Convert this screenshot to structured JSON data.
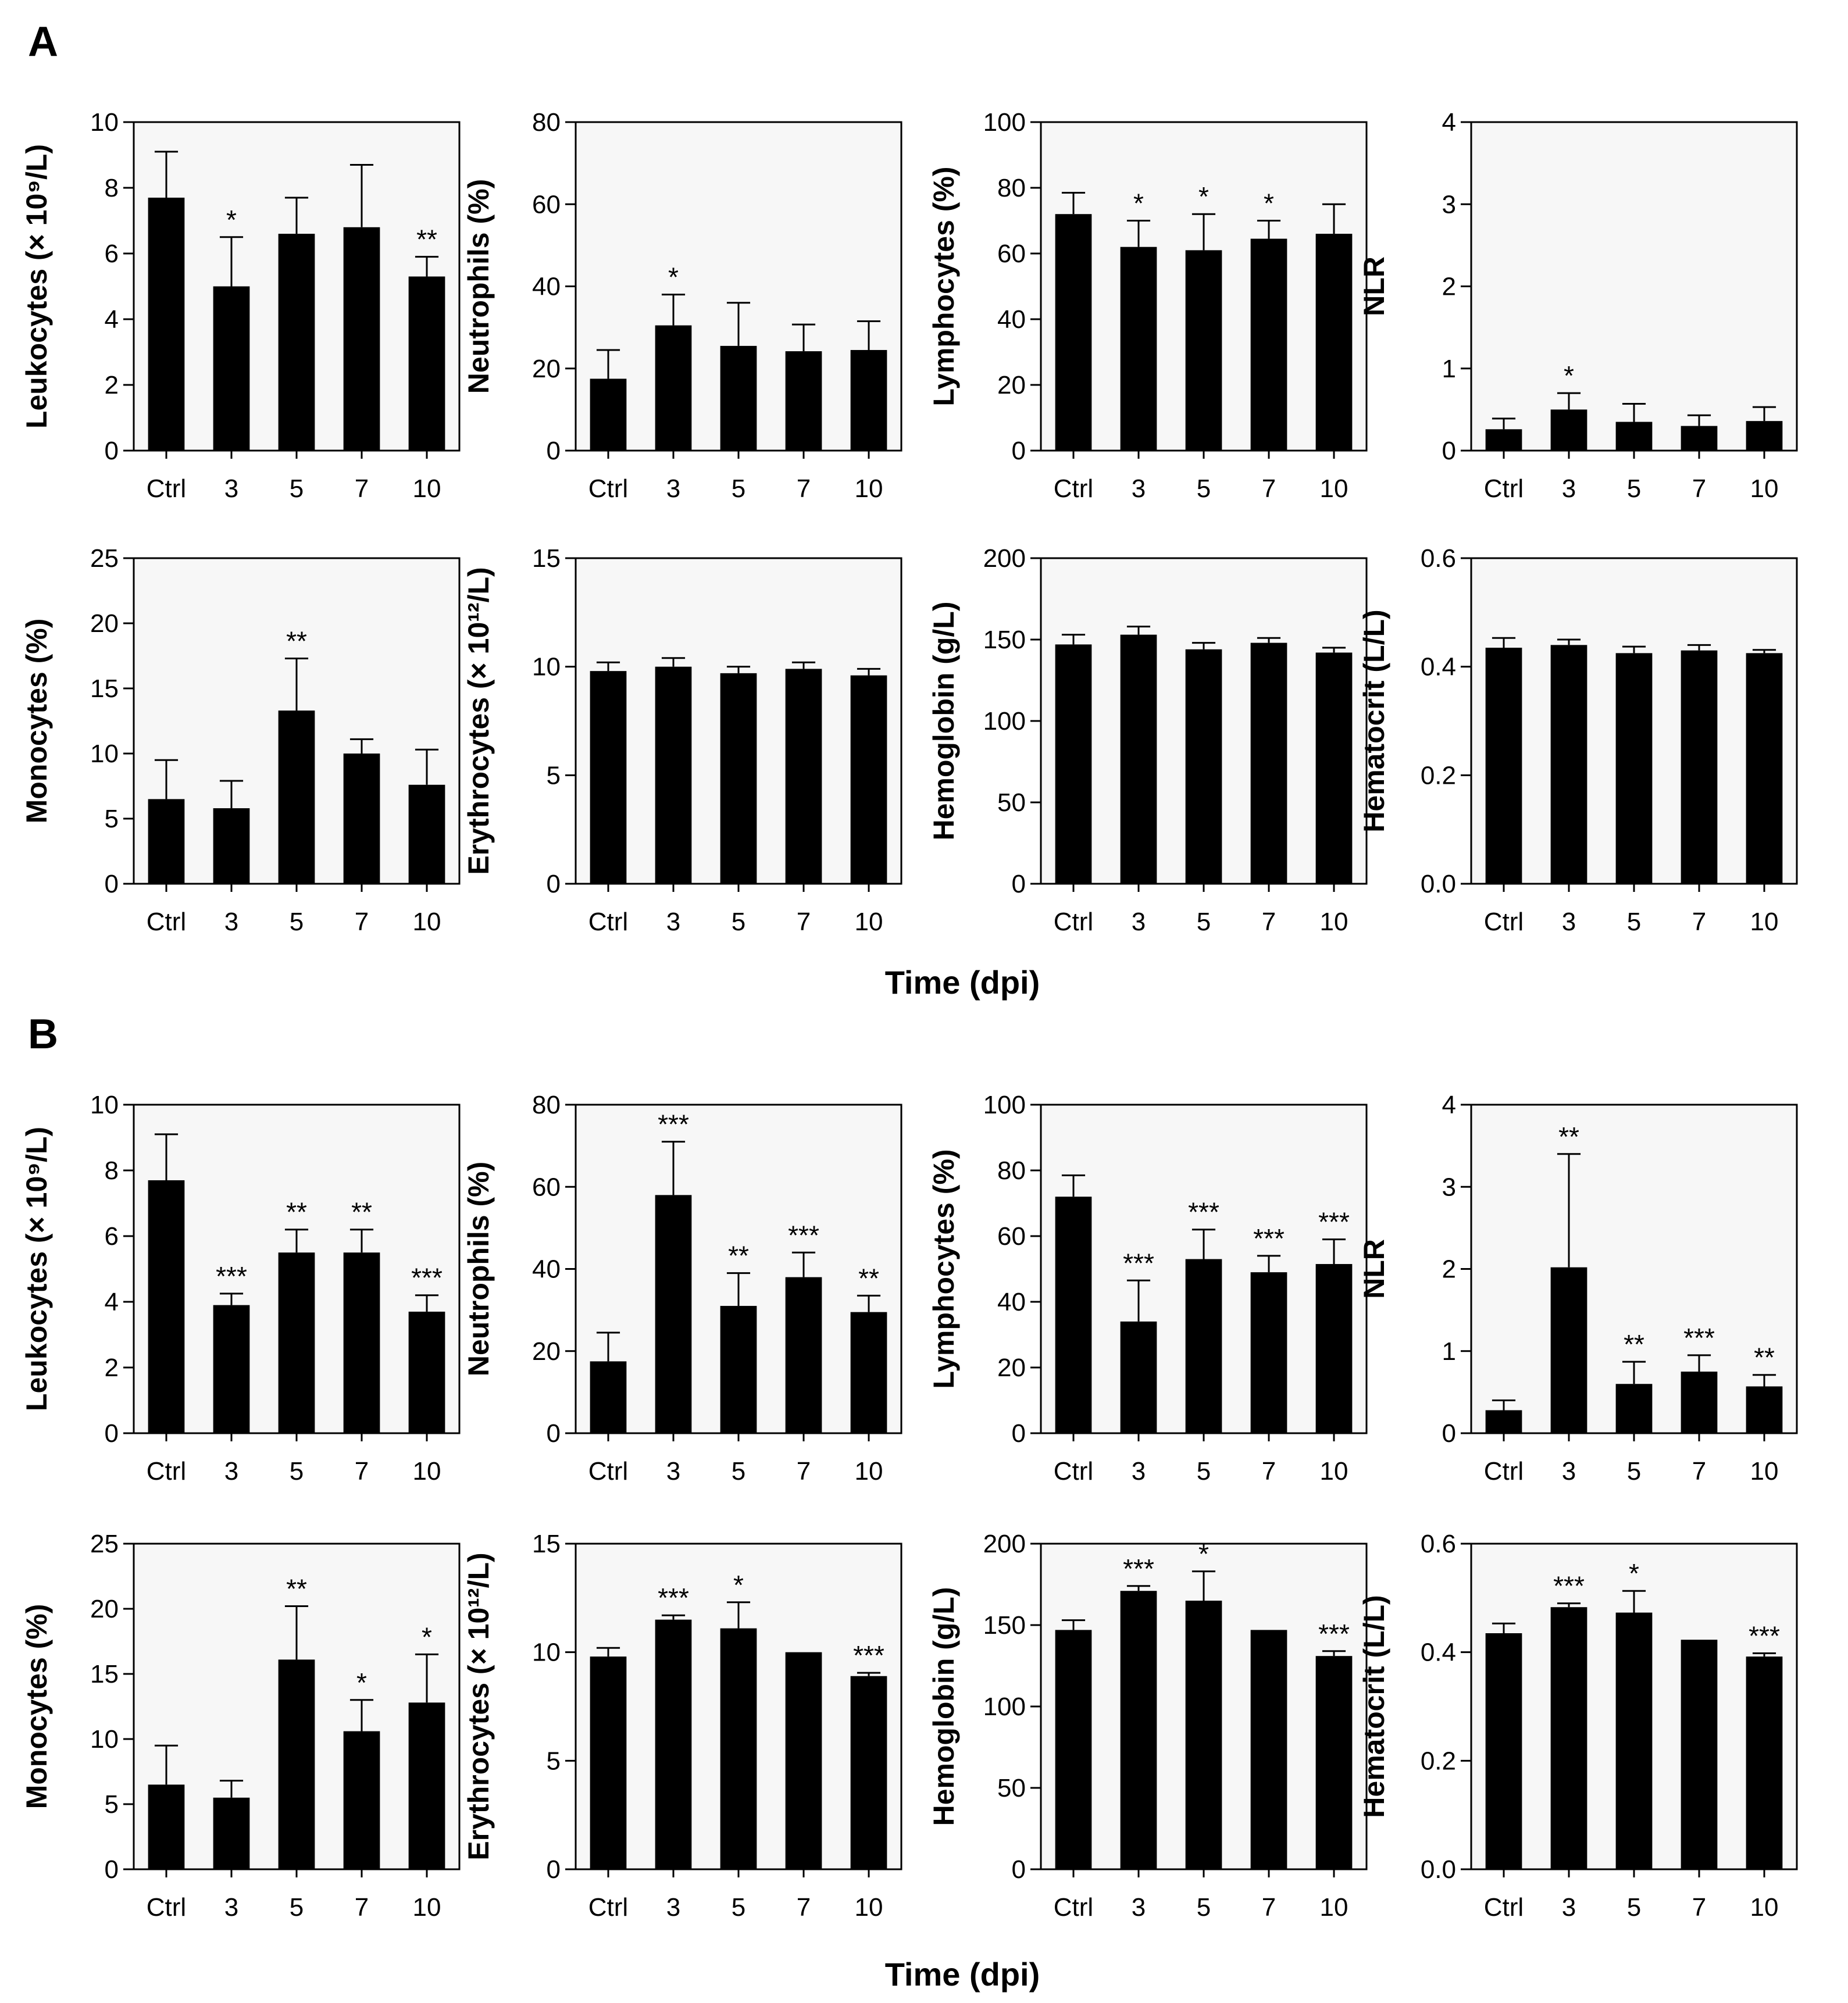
{
  "figure": {
    "x_axis_title": "Time (dpi)",
    "panels": [
      {
        "letter": "A"
      },
      {
        "letter": "B"
      }
    ]
  },
  "chart_data": [
    {
      "panel": "A",
      "type": "bar",
      "ylabel": "Leukocytes (× 10⁹/L)",
      "categories": [
        "Ctrl",
        "3",
        "5",
        "7",
        "10"
      ],
      "values": [
        7.7,
        5.0,
        6.6,
        6.8,
        5.3
      ],
      "errors": [
        1.4,
        1.5,
        1.1,
        1.9,
        0.6
      ],
      "significance": [
        "",
        "*",
        "",
        "",
        "**"
      ],
      "ylim": [
        0,
        10
      ],
      "yticks": [
        0,
        2,
        4,
        6,
        8,
        10
      ],
      "ytick_labels": [
        "0",
        "2",
        "4",
        "6",
        "8",
        "10"
      ]
    },
    {
      "panel": "A",
      "type": "bar",
      "ylabel": "Neutrophils (%)",
      "categories": [
        "Ctrl",
        "3",
        "5",
        "7",
        "10"
      ],
      "values": [
        17.5,
        30.5,
        25.5,
        24.2,
        24.5
      ],
      "errors": [
        7,
        7.5,
        10.5,
        6.5,
        7
      ],
      "significance": [
        "",
        "*",
        "",
        "",
        ""
      ],
      "ylim": [
        0,
        80
      ],
      "yticks": [
        0,
        20,
        40,
        60,
        80
      ],
      "ytick_labels": [
        "0",
        "20",
        "40",
        "60",
        "80"
      ]
    },
    {
      "panel": "A",
      "type": "bar",
      "ylabel": "Lymphocytes (%)",
      "categories": [
        "Ctrl",
        "3",
        "5",
        "7",
        "10"
      ],
      "values": [
        72,
        62,
        61,
        64.5,
        66
      ],
      "errors": [
        6.5,
        8,
        11,
        5.5,
        9
      ],
      "significance": [
        "",
        "*",
        "*",
        "*",
        ""
      ],
      "ylim": [
        0,
        100
      ],
      "yticks": [
        0,
        20,
        40,
        60,
        80,
        100
      ],
      "ytick_labels": [
        "0",
        "20",
        "40",
        "60",
        "80",
        "100"
      ]
    },
    {
      "panel": "A",
      "type": "bar",
      "ylabel": "NLR",
      "categories": [
        "Ctrl",
        "3",
        "5",
        "7",
        "10"
      ],
      "values": [
        0.26,
        0.5,
        0.35,
        0.3,
        0.36
      ],
      "errors": [
        0.13,
        0.2,
        0.22,
        0.13,
        0.17
      ],
      "significance": [
        "",
        "*",
        "",
        "",
        ""
      ],
      "ylim": [
        0,
        4
      ],
      "yticks": [
        0,
        1,
        2,
        3,
        4
      ],
      "ytick_labels": [
        "0",
        "1",
        "2",
        "3",
        "4"
      ]
    },
    {
      "panel": "A",
      "type": "bar",
      "ylabel": "Monocytes (%)",
      "categories": [
        "Ctrl",
        "3",
        "5",
        "7",
        "10"
      ],
      "values": [
        6.5,
        5.8,
        13.3,
        10,
        7.6
      ],
      "errors": [
        3,
        2.1,
        4,
        1.1,
        2.7
      ],
      "significance": [
        "",
        "",
        "**",
        "",
        ""
      ],
      "ylim": [
        0,
        25
      ],
      "yticks": [
        0,
        5,
        10,
        15,
        20,
        25
      ],
      "ytick_labels": [
        "0",
        "5",
        "10",
        "15",
        "20",
        "25"
      ]
    },
    {
      "panel": "A",
      "type": "bar",
      "ylabel": "Erythrocytes (× 10¹²/L)",
      "categories": [
        "Ctrl",
        "3",
        "5",
        "7",
        "10"
      ],
      "values": [
        9.8,
        10.0,
        9.7,
        9.9,
        9.6
      ],
      "errors": [
        0.4,
        0.4,
        0.3,
        0.3,
        0.3
      ],
      "significance": [
        "",
        "",
        "",
        "",
        ""
      ],
      "ylim": [
        0,
        15
      ],
      "yticks": [
        0,
        5,
        10,
        15
      ],
      "ytick_labels": [
        "0",
        "5",
        "10",
        "15"
      ]
    },
    {
      "panel": "A",
      "type": "bar",
      "ylabel": "Hemoglobin (g/L)",
      "categories": [
        "Ctrl",
        "3",
        "5",
        "7",
        "10"
      ],
      "values": [
        147,
        153,
        144,
        148,
        142
      ],
      "errors": [
        6,
        5,
        4,
        3,
        3
      ],
      "significance": [
        "",
        "",
        "",
        "",
        ""
      ],
      "ylim": [
        0,
        200
      ],
      "yticks": [
        0,
        50,
        100,
        150,
        200
      ],
      "ytick_labels": [
        "0",
        "50",
        "100",
        "150",
        "200"
      ]
    },
    {
      "panel": "A",
      "type": "bar",
      "ylabel": "Hematocrit (L/L)",
      "categories": [
        "Ctrl",
        "3",
        "5",
        "7",
        "10"
      ],
      "values": [
        0.435,
        0.44,
        0.425,
        0.43,
        0.425
      ],
      "errors": [
        0.018,
        0.01,
        0.012,
        0.01,
        0.006
      ],
      "significance": [
        "",
        "",
        "",
        "",
        ""
      ],
      "ylim": [
        0,
        0.6
      ],
      "yticks": [
        0,
        0.2,
        0.4,
        0.6
      ],
      "ytick_labels": [
        "0.0",
        "0.2",
        "0.4",
        "0.6"
      ]
    },
    {
      "panel": "B",
      "type": "bar",
      "ylabel": "Leukocytes (× 10⁹/L)",
      "categories": [
        "Ctrl",
        "3",
        "5",
        "7",
        "10"
      ],
      "values": [
        7.7,
        3.9,
        5.5,
        5.5,
        3.7
      ],
      "errors": [
        1.4,
        0.35,
        0.7,
        0.7,
        0.5
      ],
      "significance": [
        "",
        "***",
        "**",
        "**",
        "***"
      ],
      "ylim": [
        0,
        10
      ],
      "yticks": [
        0,
        2,
        4,
        6,
        8,
        10
      ],
      "ytick_labels": [
        "0",
        "2",
        "4",
        "6",
        "8",
        "10"
      ]
    },
    {
      "panel": "B",
      "type": "bar",
      "ylabel": "Neutrophils (%)",
      "categories": [
        "Ctrl",
        "3",
        "5",
        "7",
        "10"
      ],
      "values": [
        17.5,
        58,
        31,
        38,
        29.5
      ],
      "errors": [
        7,
        13,
        8,
        6,
        4
      ],
      "significance": [
        "",
        "***",
        "**",
        "***",
        "**"
      ],
      "ylim": [
        0,
        80
      ],
      "yticks": [
        0,
        20,
        40,
        60,
        80
      ],
      "ytick_labels": [
        "0",
        "20",
        "40",
        "60",
        "80"
      ]
    },
    {
      "panel": "B",
      "type": "bar",
      "ylabel": "Lymphocytes (%)",
      "categories": [
        "Ctrl",
        "3",
        "5",
        "7",
        "10"
      ],
      "values": [
        72,
        34,
        53,
        49,
        51.5
      ],
      "errors": [
        6.5,
        12.5,
        9,
        5,
        7.5
      ],
      "significance": [
        "",
        "***",
        "***",
        "***",
        "***"
      ],
      "ylim": [
        0,
        100
      ],
      "yticks": [
        0,
        20,
        40,
        60,
        80,
        100
      ],
      "ytick_labels": [
        "0",
        "20",
        "40",
        "60",
        "80",
        "100"
      ]
    },
    {
      "panel": "B",
      "type": "bar",
      "ylabel": "NLR",
      "categories": [
        "Ctrl",
        "3",
        "5",
        "7",
        "10"
      ],
      "values": [
        0.28,
        2.02,
        0.6,
        0.75,
        0.57
      ],
      "errors": [
        0.12,
        1.38,
        0.27,
        0.2,
        0.14
      ],
      "significance": [
        "",
        "**",
        "**",
        "***",
        "**"
      ],
      "ylim": [
        0,
        4
      ],
      "yticks": [
        0,
        1,
        2,
        3,
        4
      ],
      "ytick_labels": [
        "0",
        "1",
        "2",
        "3",
        "4"
      ]
    },
    {
      "panel": "B",
      "type": "bar",
      "ylabel": "Monocytes (%)",
      "categories": [
        "Ctrl",
        "3",
        "5",
        "7",
        "10"
      ],
      "values": [
        6.5,
        5.5,
        16.1,
        10.6,
        12.8
      ],
      "errors": [
        3,
        1.3,
        4.1,
        2.4,
        3.7
      ],
      "significance": [
        "",
        "",
        "**",
        "*",
        "*"
      ],
      "ylim": [
        0,
        25
      ],
      "yticks": [
        0,
        5,
        10,
        15,
        20,
        25
      ],
      "ytick_labels": [
        "0",
        "5",
        "10",
        "15",
        "20",
        "25"
      ]
    },
    {
      "panel": "B",
      "type": "bar",
      "ylabel": "Erythrocytes (× 10¹²/L)",
      "categories": [
        "Ctrl",
        "3",
        "5",
        "7",
        "10"
      ],
      "values": [
        9.8,
        11.5,
        11.1,
        10.0,
        8.9
      ],
      "errors": [
        0.4,
        0.2,
        1.2,
        0,
        0.15
      ],
      "significance": [
        "",
        "***",
        "*",
        "",
        "***"
      ],
      "ylim": [
        0,
        15
      ],
      "yticks": [
        0,
        5,
        10,
        15
      ],
      "ytick_labels": [
        "0",
        "5",
        "10",
        "15"
      ]
    },
    {
      "panel": "B",
      "type": "bar",
      "ylabel": "Hemoglobin (g/L)",
      "categories": [
        "Ctrl",
        "3",
        "5",
        "7",
        "10"
      ],
      "values": [
        147,
        171,
        165,
        147,
        131
      ],
      "errors": [
        6,
        3,
        18,
        0,
        3
      ],
      "significance": [
        "",
        "***",
        "*",
        "",
        "***"
      ],
      "ylim": [
        0,
        200
      ],
      "yticks": [
        0,
        50,
        100,
        150,
        200
      ],
      "ytick_labels": [
        "0",
        "50",
        "100",
        "150",
        "200"
      ]
    },
    {
      "panel": "B",
      "type": "bar",
      "ylabel": "Hematocrit (L/L)",
      "categories": [
        "Ctrl",
        "3",
        "5",
        "7",
        "10"
      ],
      "values": [
        0.435,
        0.483,
        0.473,
        0.423,
        0.392
      ],
      "errors": [
        0.018,
        0.007,
        0.04,
        0,
        0.006
      ],
      "significance": [
        "",
        "***",
        "*",
        "",
        "***"
      ],
      "ylim": [
        0,
        0.6
      ],
      "yticks": [
        0,
        0.2,
        0.4,
        0.6
      ],
      "ytick_labels": [
        "0.0",
        "0.2",
        "0.4",
        "0.6"
      ]
    }
  ]
}
